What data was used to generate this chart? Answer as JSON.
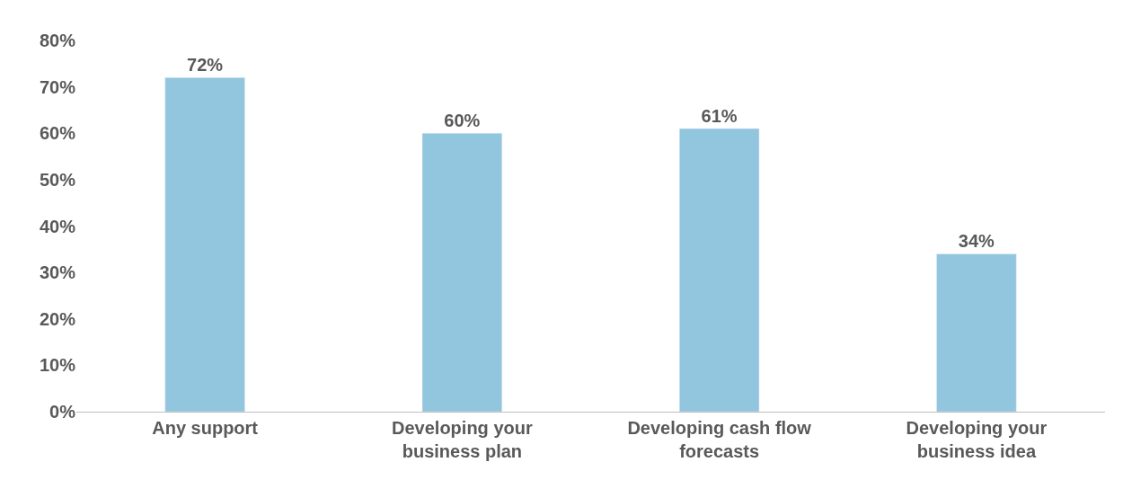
{
  "chart_data": {
    "type": "bar",
    "categories": [
      "Any support",
      "Developing your business plan",
      "Developing cash flow forecasts",
      "Developing your business idea"
    ],
    "values": [
      72,
      60,
      61,
      34
    ],
    "value_labels": [
      "72%",
      "60%",
      "61%",
      "34%"
    ],
    "color": "#92c5de",
    "ylim": [
      0,
      80
    ],
    "yticks": [
      {
        "value": 0,
        "label": "0%"
      },
      {
        "value": 10,
        "label": "10%"
      },
      {
        "value": 20,
        "label": "20%"
      },
      {
        "value": 30,
        "label": "30%"
      },
      {
        "value": 40,
        "label": "40%"
      },
      {
        "value": 50,
        "label": "50%"
      },
      {
        "value": 60,
        "label": "60%"
      },
      {
        "value": 70,
        "label": "70%"
      },
      {
        "value": 80,
        "label": "80%"
      }
    ],
    "legend": false
  }
}
